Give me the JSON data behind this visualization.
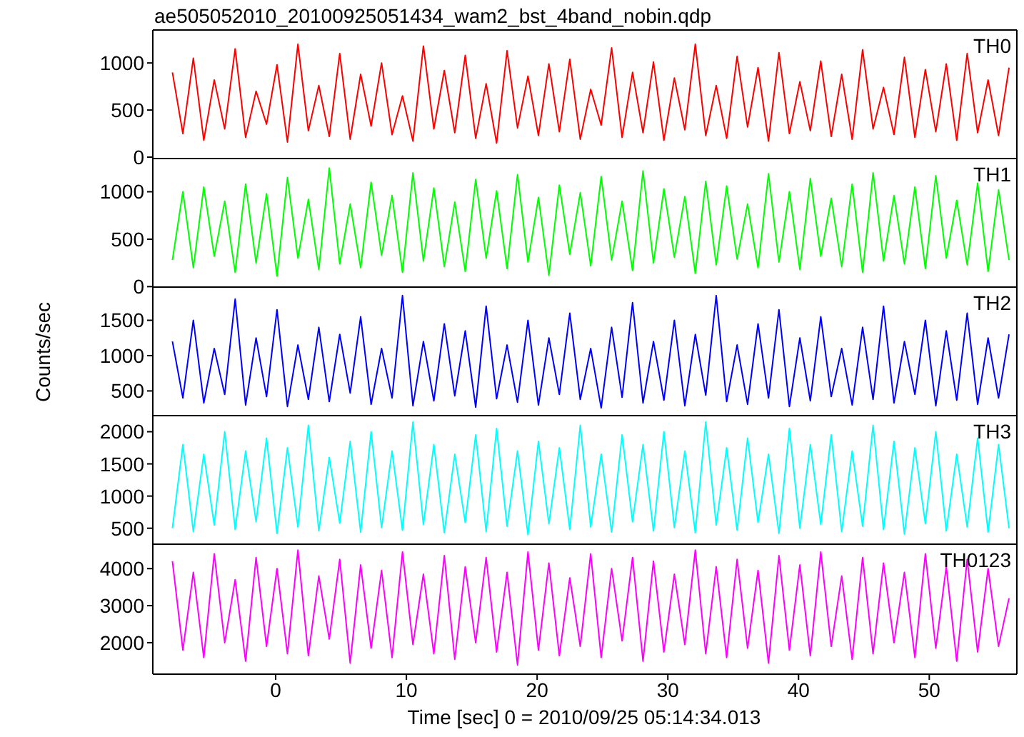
{
  "chart_data": [
    {
      "type": "line",
      "title": "ae505052010_20100925051434_wam2_bst_4band_nobin.qdp",
      "tick_labels": "y",
      "xlim": [
        -9.4,
        56.7
      ],
      "xticks": [
        0,
        10,
        20,
        30,
        40,
        50
      ],
      "ylim": [
        -30,
        1350
      ],
      "yticks": [
        0,
        500,
        1000
      ],
      "marker": "none",
      "x": [
        -7.9,
        -7.1,
        -6.3,
        -5.5,
        -4.7,
        -3.9,
        -3.1,
        -2.3,
        -1.5,
        -0.7,
        0.1,
        0.9,
        1.7,
        2.5,
        3.3,
        4.1,
        4.9,
        5.7,
        6.5,
        7.3,
        8.1,
        8.9,
        9.7,
        10.5,
        11.3,
        12.1,
        12.9,
        13.7,
        14.5,
        15.3,
        16.1,
        16.9,
        17.7,
        18.5,
        19.3,
        20.1,
        20.9,
        21.7,
        22.5,
        23.3,
        24.1,
        24.9,
        25.7,
        26.5,
        27.3,
        28.1,
        28.9,
        29.7,
        30.5,
        31.3,
        32.1,
        32.9,
        33.7,
        34.5,
        35.3,
        36.1,
        36.9,
        37.7,
        38.5,
        39.3,
        40.1,
        40.9,
        41.7,
        42.5,
        43.3,
        44.1,
        44.9,
        45.7,
        46.5,
        47.3,
        48.1,
        48.9,
        49.7,
        50.5,
        51.3,
        52.1,
        52.9,
        53.7,
        54.5,
        55.3,
        56.1
      ],
      "series": [
        {
          "name": "TH0",
          "color": "#ff0000",
          "values": [
            900,
            250,
            1050,
            180,
            820,
            300,
            1150,
            210,
            700,
            350,
            980,
            160,
            1200,
            280,
            760,
            220,
            1100,
            190,
            880,
            330,
            1000,
            240,
            650,
            170,
            1180,
            300,
            920,
            260,
            1080,
            200,
            780,
            150,
            1130,
            310,
            860,
            230,
            990,
            270,
            1040,
            190,
            720,
            340,
            1160,
            210,
            900,
            260,
            1010,
            180,
            840,
            290,
            1200,
            230,
            760,
            200,
            1070,
            320,
            950,
            170,
            1110,
            250,
            800,
            280,
            1020,
            220,
            880,
            190,
            1140,
            300,
            740,
            240,
            1060,
            210,
            930,
            270,
            990,
            180,
            1100,
            260,
            820,
            230,
            950
          ]
        }
      ]
    },
    {
      "type": "line",
      "tick_labels": "y",
      "xlim": [
        -9.4,
        56.7
      ],
      "xticks": [
        0,
        10,
        20,
        30,
        40,
        50
      ],
      "ylim": [
        -20,
        1350
      ],
      "yticks": [
        0,
        500,
        1000
      ],
      "marker": "none",
      "x": [
        -7.9,
        -7.1,
        -6.3,
        -5.5,
        -4.7,
        -3.9,
        -3.1,
        -2.3,
        -1.5,
        -0.7,
        0.1,
        0.9,
        1.7,
        2.5,
        3.3,
        4.1,
        4.9,
        5.7,
        6.5,
        7.3,
        8.1,
        8.9,
        9.7,
        10.5,
        11.3,
        12.1,
        12.9,
        13.7,
        14.5,
        15.3,
        16.1,
        16.9,
        17.7,
        18.5,
        19.3,
        20.1,
        20.9,
        21.7,
        22.5,
        23.3,
        24.1,
        24.9,
        25.7,
        26.5,
        27.3,
        28.1,
        28.9,
        29.7,
        30.5,
        31.3,
        32.1,
        32.9,
        33.7,
        34.5,
        35.3,
        36.1,
        36.9,
        37.7,
        38.5,
        39.3,
        40.1,
        40.9,
        41.7,
        42.5,
        43.3,
        44.1,
        44.9,
        45.7,
        46.5,
        47.3,
        48.1,
        48.9,
        49.7,
        50.5,
        51.3,
        52.1,
        52.9,
        53.7,
        54.5,
        55.3,
        56.1
      ],
      "series": [
        {
          "name": "TH1",
          "color": "#00ff00",
          "values": [
            280,
            1000,
            200,
            1050,
            320,
            900,
            150,
            1080,
            250,
            980,
            110,
            1150,
            300,
            920,
            180,
            1250,
            240,
            870,
            200,
            1100,
            330,
            960,
            150,
            1200,
            270,
            1040,
            210,
            890,
            160,
            1130,
            300,
            1010,
            190,
            1180,
            260,
            940,
            120,
            1070,
            340,
            990,
            220,
            1160,
            280,
            900,
            170,
            1220,
            250,
            1030,
            310,
            950,
            140,
            1110,
            230,
            1060,
            290,
            870,
            200,
            1190,
            260,
            1000,
            180,
            1140,
            320,
            930,
            210,
            1080,
            150,
            1200,
            270,
            960,
            240,
            1050,
            190,
            1170,
            300,
            910,
            230,
            1090,
            160,
            1020,
            280
          ]
        }
      ]
    },
    {
      "type": "line",
      "tick_labels": "y",
      "ylabel": "Counts/sec",
      "xlim": [
        -9.4,
        56.7
      ],
      "xticks": [
        0,
        10,
        20,
        30,
        40,
        50
      ],
      "ylim": [
        130,
        1970
      ],
      "yticks": [
        500,
        1000,
        1500
      ],
      "marker": "none",
      "x": [
        -7.9,
        -7.1,
        -6.3,
        -5.5,
        -4.7,
        -3.9,
        -3.1,
        -2.3,
        -1.5,
        -0.7,
        0.1,
        0.9,
        1.7,
        2.5,
        3.3,
        4.1,
        4.9,
        5.7,
        6.5,
        7.3,
        8.1,
        8.9,
        9.7,
        10.5,
        11.3,
        12.1,
        12.9,
        13.7,
        14.5,
        15.3,
        16.1,
        16.9,
        17.7,
        18.5,
        19.3,
        20.1,
        20.9,
        21.7,
        22.5,
        23.3,
        24.1,
        24.9,
        25.7,
        26.5,
        27.3,
        28.1,
        28.9,
        29.7,
        30.5,
        31.3,
        32.1,
        32.9,
        33.7,
        34.5,
        35.3,
        36.1,
        36.9,
        37.7,
        38.5,
        39.3,
        40.1,
        40.9,
        41.7,
        42.5,
        43.3,
        44.1,
        44.9,
        45.7,
        46.5,
        47.3,
        48.1,
        48.9,
        49.7,
        50.5,
        51.3,
        52.1,
        52.9,
        53.7,
        54.5,
        55.3,
        56.1
      ],
      "series": [
        {
          "name": "TH2",
          "color": "#0000ff",
          "values": [
            1200,
            400,
            1500,
            330,
            1100,
            450,
            1800,
            300,
            1250,
            420,
            1650,
            280,
            1150,
            380,
            1400,
            350,
            1300,
            470,
            1550,
            310,
            1100,
            400,
            1850,
            290,
            1200,
            360,
            1450,
            430,
            1350,
            270,
            1700,
            390,
            1150,
            340,
            1500,
            300,
            1250,
            450,
            1600,
            380,
            1100,
            260,
            1400,
            410,
            1750,
            330,
            1200,
            370,
            1500,
            290,
            1300,
            440,
            1850,
            350,
            1150,
            310,
            1450,
            400,
            1650,
            280,
            1250,
            360,
            1550,
            420,
            1100,
            300,
            1400,
            380,
            1700,
            330,
            1200,
            450,
            1500,
            290,
            1350,
            370,
            1600,
            310,
            1250,
            400,
            1300
          ]
        }
      ]
    },
    {
      "type": "line",
      "tick_labels": "y",
      "xlim": [
        -9.4,
        56.7
      ],
      "xticks": [
        0,
        10,
        20,
        30,
        40,
        50
      ],
      "ylim": [
        230,
        2250
      ],
      "yticks": [
        500,
        1000,
        1500,
        2000
      ],
      "marker": "none",
      "x": [
        -7.9,
        -7.1,
        -6.3,
        -5.5,
        -4.7,
        -3.9,
        -3.1,
        -2.3,
        -1.5,
        -0.7,
        0.1,
        0.9,
        1.7,
        2.5,
        3.3,
        4.1,
        4.9,
        5.7,
        6.5,
        7.3,
        8.1,
        8.9,
        9.7,
        10.5,
        11.3,
        12.1,
        12.9,
        13.7,
        14.5,
        15.3,
        16.1,
        16.9,
        17.7,
        18.5,
        19.3,
        20.1,
        20.9,
        21.7,
        22.5,
        23.3,
        24.1,
        24.9,
        25.7,
        26.5,
        27.3,
        28.1,
        28.9,
        29.7,
        30.5,
        31.3,
        32.1,
        32.9,
        33.7,
        34.5,
        35.3,
        36.1,
        36.9,
        37.7,
        38.5,
        39.3,
        40.1,
        40.9,
        41.7,
        42.5,
        43.3,
        44.1,
        44.9,
        45.7,
        46.5,
        47.3,
        48.1,
        48.9,
        49.7,
        50.5,
        51.3,
        52.1,
        52.9,
        53.7,
        54.5,
        55.3,
        56.1
      ],
      "series": [
        {
          "name": "TH3",
          "color": "#00ffff",
          "values": [
            500,
            1800,
            450,
            1650,
            550,
            2000,
            480,
            1700,
            600,
            1900,
            420,
            1750,
            520,
            2100,
            460,
            1600,
            580,
            1850,
            440,
            2000,
            510,
            1700,
            470,
            2150,
            560,
            1800,
            430,
            1650,
            590,
            1950,
            450,
            2050,
            530,
            1700,
            400,
            1850,
            570,
            1750,
            480,
            2100,
            520,
            1650,
            440,
            1950,
            600,
            1800,
            460,
            2000,
            510,
            1700,
            430,
            2150,
            550,
            1750,
            470,
            1900,
            590,
            1650,
            420,
            2050,
            500,
            1800,
            560,
            1950,
            450,
            1700,
            530,
            2100,
            480,
            1850,
            410,
            1750,
            570,
            2000,
            460,
            1650,
            520,
            1900,
            440,
            1800,
            500
          ]
        }
      ]
    },
    {
      "type": "line",
      "xlabel": "Time [sec] 0 = 2010/09/25 05:14:34.013",
      "xlim": [
        -9.4,
        56.7
      ],
      "xticks": [
        0,
        10,
        20,
        30,
        40,
        50
      ],
      "ylim": [
        1150,
        4660
      ],
      "yticks": [
        2000,
        3000,
        4000
      ],
      "marker": "none",
      "x": [
        -7.9,
        -7.1,
        -6.3,
        -5.5,
        -4.7,
        -3.9,
        -3.1,
        -2.3,
        -1.5,
        -0.7,
        0.1,
        0.9,
        1.7,
        2.5,
        3.3,
        4.1,
        4.9,
        5.7,
        6.5,
        7.3,
        8.1,
        8.9,
        9.7,
        10.5,
        11.3,
        12.1,
        12.9,
        13.7,
        14.5,
        15.3,
        16.1,
        16.9,
        17.7,
        18.5,
        19.3,
        20.1,
        20.9,
        21.7,
        22.5,
        23.3,
        24.1,
        24.9,
        25.7,
        26.5,
        27.3,
        28.1,
        28.9,
        29.7,
        30.5,
        31.3,
        32.1,
        32.9,
        33.7,
        34.5,
        35.3,
        36.1,
        36.9,
        37.7,
        38.5,
        39.3,
        40.1,
        40.9,
        41.7,
        42.5,
        43.3,
        44.1,
        44.9,
        45.7,
        46.5,
        47.3,
        48.1,
        48.9,
        49.7,
        50.5,
        51.3,
        52.1,
        52.9,
        53.7,
        54.5,
        55.3,
        56.1
      ],
      "series": [
        {
          "name": "TH0123",
          "color": "#ff00ff",
          "values": [
            4200,
            1800,
            3900,
            1600,
            4400,
            2000,
            3700,
            1500,
            4300,
            1900,
            4000,
            1700,
            4500,
            1650,
            3800,
            2100,
            4250,
            1450,
            4100,
            1850,
            3950,
            1600,
            4450,
            1950,
            3850,
            1700,
            4350,
            1550,
            4050,
            2000,
            4300,
            1750,
            3900,
            1400,
            4450,
            1800,
            4150,
            1650,
            3750,
            1900,
            4400,
            1600,
            4000,
            2050,
            4300,
            1500,
            4200,
            1750,
            3850,
            1950,
            4500,
            1700,
            4050,
            1600,
            4250,
            1850,
            3950,
            1450,
            4350,
            1800,
            4100,
            1650,
            4450,
            1900,
            3800,
            1550,
            4300,
            1700,
            4150,
            2000,
            3900,
            1600,
            4400,
            1850,
            4050,
            1500,
            4250,
            1750,
            4000,
            1900,
            3200
          ]
        }
      ]
    }
  ]
}
